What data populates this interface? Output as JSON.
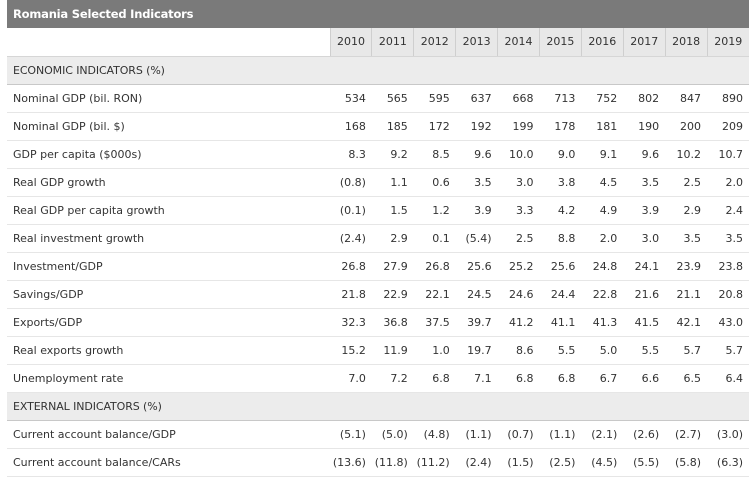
{
  "title": "Romania Selected Indicators",
  "years": [
    "2010",
    "2011",
    "2012",
    "2013",
    "2014",
    "2015",
    "2016",
    "2017",
    "2018",
    "2019"
  ],
  "sections": [
    {
      "name": "ECONOMIC INDICATORS (%)",
      "rows": [
        {
          "label": "Nominal GDP (bil. RON)",
          "values": [
            "534",
            "565",
            "595",
            "637",
            "668",
            "713",
            "752",
            "802",
            "847",
            "890"
          ]
        },
        {
          "label": "Nominal GDP (bil. $)",
          "values": [
            "168",
            "185",
            "172",
            "192",
            "199",
            "178",
            "181",
            "190",
            "200",
            "209"
          ]
        },
        {
          "label": "GDP per capita ($000s)",
          "values": [
            "8.3",
            "9.2",
            "8.5",
            "9.6",
            "10.0",
            "9.0",
            "9.1",
            "9.6",
            "10.2",
            "10.7"
          ]
        },
        {
          "label": "Real GDP growth",
          "values": [
            "(0.8)",
            "1.1",
            "0.6",
            "3.5",
            "3.0",
            "3.8",
            "4.5",
            "3.5",
            "2.5",
            "2.0"
          ]
        },
        {
          "label": "Real GDP per capita growth",
          "values": [
            "(0.1)",
            "1.5",
            "1.2",
            "3.9",
            "3.3",
            "4.2",
            "4.9",
            "3.9",
            "2.9",
            "2.4"
          ]
        },
        {
          "label": "Real investment growth",
          "values": [
            "(2.4)",
            "2.9",
            "0.1",
            "(5.4)",
            "2.5",
            "8.8",
            "2.0",
            "3.0",
            "3.5",
            "3.5"
          ]
        },
        {
          "label": "Investment/GDP",
          "values": [
            "26.8",
            "27.9",
            "26.8",
            "25.6",
            "25.2",
            "25.6",
            "24.8",
            "24.1",
            "23.9",
            "23.8"
          ]
        },
        {
          "label": "Savings/GDP",
          "values": [
            "21.8",
            "22.9",
            "22.1",
            "24.5",
            "24.6",
            "24.4",
            "22.8",
            "21.6",
            "21.1",
            "20.8"
          ]
        },
        {
          "label": "Exports/GDP",
          "values": [
            "32.3",
            "36.8",
            "37.5",
            "39.7",
            "41.2",
            "41.1",
            "41.3",
            "41.5",
            "42.1",
            "43.0"
          ]
        },
        {
          "label": "Real exports growth",
          "values": [
            "15.2",
            "11.9",
            "1.0",
            "19.7",
            "8.6",
            "5.5",
            "5.0",
            "5.5",
            "5.7",
            "5.7"
          ]
        },
        {
          "label": "Unemployment rate",
          "values": [
            "7.0",
            "7.2",
            "6.8",
            "7.1",
            "6.8",
            "6.8",
            "6.7",
            "6.6",
            "6.5",
            "6.4"
          ]
        }
      ]
    },
    {
      "name": "EXTERNAL INDICATORS (%)",
      "rows": [
        {
          "label": "Current account balance/GDP",
          "values": [
            "(5.1)",
            "(5.0)",
            "(4.8)",
            "(1.1)",
            "(0.7)",
            "(1.1)",
            "(2.1)",
            "(2.6)",
            "(2.7)",
            "(3.0)"
          ]
        },
        {
          "label": "Current account balance/CARs",
          "values": [
            "(13.6)",
            "(11.8)",
            "(11.2)",
            "(2.4)",
            "(1.5)",
            "(2.5)",
            "(4.5)",
            "(5.5)",
            "(5.8)",
            "(6.3)"
          ]
        }
      ]
    }
  ]
}
